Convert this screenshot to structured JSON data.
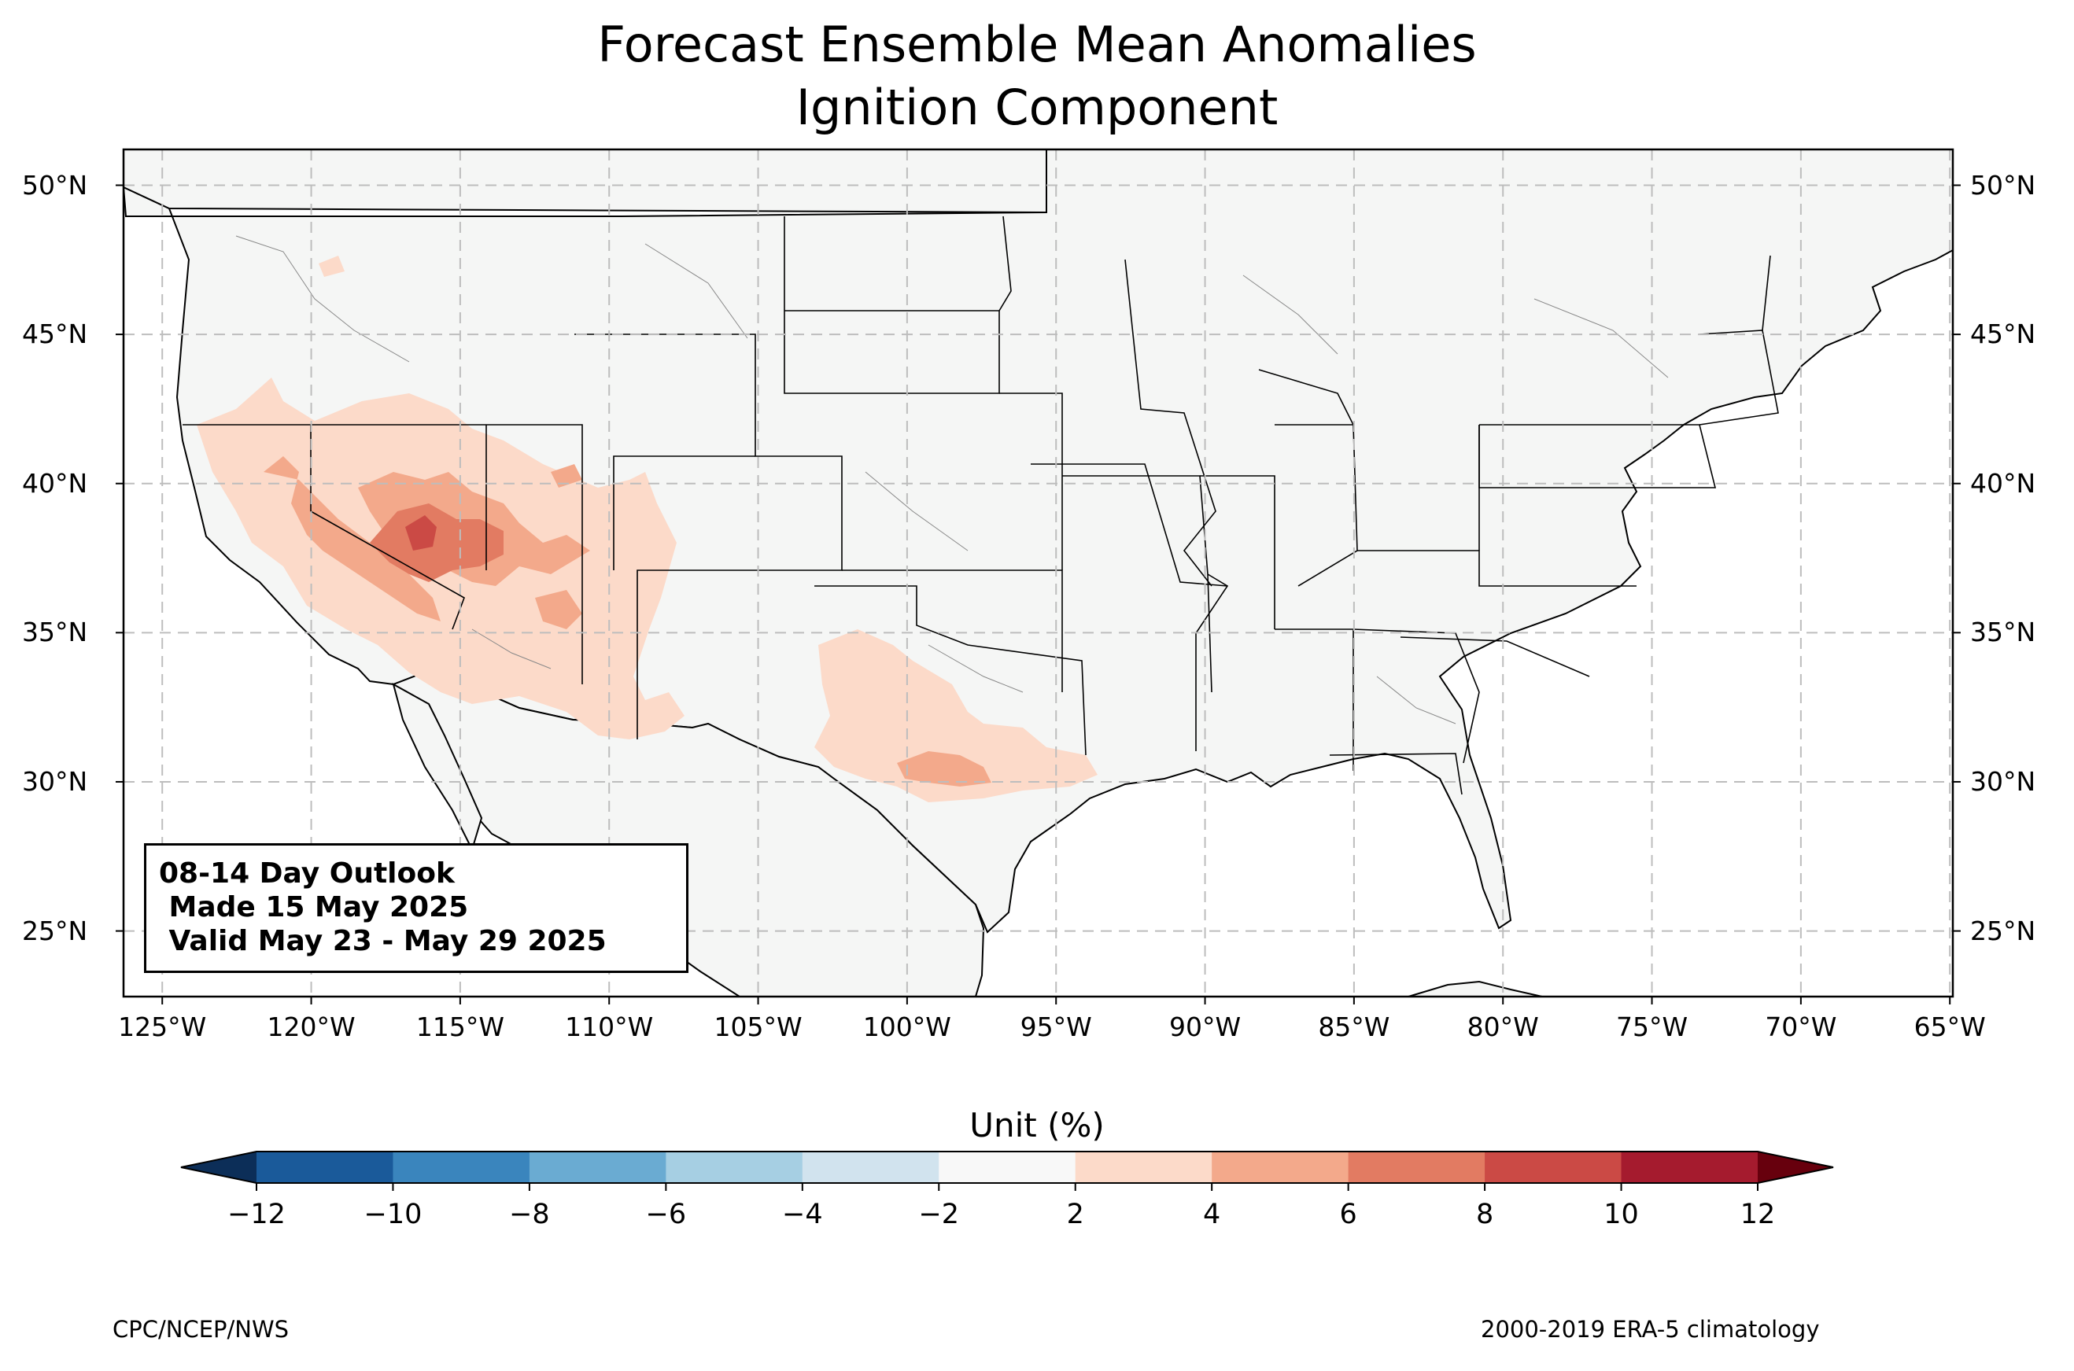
{
  "title": {
    "line1": "Forecast Ensemble Mean Anomalies",
    "line2": "Ignition Component"
  },
  "map": {
    "lat_labels": [
      "50°N",
      "45°N",
      "40°N",
      "35°N",
      "30°N",
      "25°N"
    ],
    "lon_labels": [
      "125°W",
      "120°W",
      "115°W",
      "110°W",
      "105°W",
      "100°W",
      "95°W",
      "90°W",
      "85°W",
      "80°W",
      "75°W",
      "70°W",
      "65°W"
    ],
    "extent": {
      "lon": [
        -126.3,
        -64.9
      ],
      "lat": [
        22.8,
        51.2
      ]
    },
    "land_color": "#f5f6f5",
    "gridlines": true
  },
  "outlook": {
    "line1": "08-14 Day Outlook",
    "line2": " Made 15 May 2025",
    "line3": " Valid May 23 - May 29 2025"
  },
  "colorbar": {
    "label": "Unit (%)",
    "ticks": [
      "−12",
      "−10",
      "−8",
      "−6",
      "−4",
      "−2",
      "2",
      "4",
      "6",
      "8",
      "10",
      "12"
    ],
    "colors": [
      "#1a5a9a",
      "#3a85bd",
      "#6aabd2",
      "#a6cfe3",
      "#d1e3ee",
      "#f8f8f8",
      "#fcdac9",
      "#f3a98b",
      "#e27b62",
      "#cb4a45",
      "#a51b2e"
    ],
    "under_color": "#0c2e58",
    "over_color": "#67000d"
  },
  "footer": {
    "left": "CPC/NCEP/NWS",
    "right": "2000-2019 ERA-5 climatology"
  }
}
